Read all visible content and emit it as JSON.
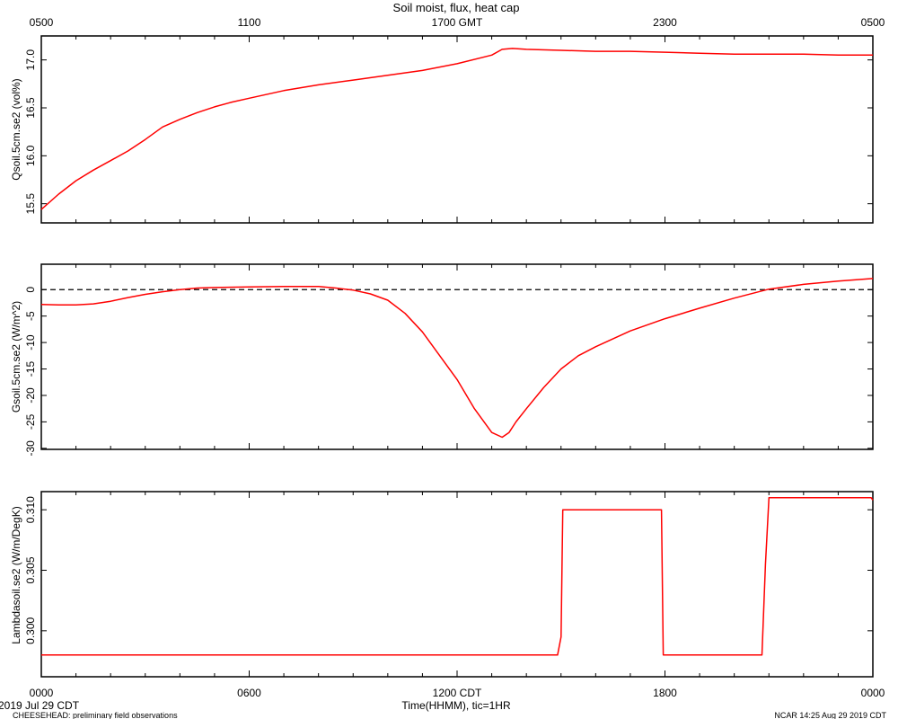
{
  "figure": {
    "title": "Soil moist, flux, heat cap",
    "date_label": "2019 Jul 29 CDT",
    "footer_left": "CHEESEHEAD: preliminary field observations",
    "footer_right": "NCAR 14:25 Aug 29 2019 CDT",
    "top_axis_ticks": [
      "0500",
      "1100",
      "1700 GMT",
      "2300",
      "0500"
    ],
    "bottom_axis_ticks": [
      "0000",
      "0600",
      "1200 CDT",
      "1800",
      "0000"
    ],
    "xlabel": "Time(HHMM), tic=1HR"
  },
  "colors": {
    "series": "#ff0000",
    "axis": "#000000",
    "zero_line": "#000000"
  },
  "chart_data": [
    {
      "type": "line",
      "ylabel": "Qsoil.5cm.se2 (vol%)",
      "xlim": [
        0,
        24
      ],
      "ylim": [
        15.3,
        17.25
      ],
      "yticks": [
        15.5,
        16.0,
        16.5,
        17.0
      ],
      "ytick_labels": [
        "15.5",
        "16.0",
        "16.5",
        "17.0"
      ],
      "series": [
        {
          "x": [
            0,
            0.5,
            1,
            1.5,
            2,
            2.5,
            3,
            3.5,
            4,
            4.5,
            5,
            5.5,
            6,
            7,
            8,
            9,
            10,
            11,
            12,
            13,
            13.3,
            13.6,
            14,
            15,
            16,
            17,
            18,
            19,
            20,
            21,
            22,
            23,
            24
          ],
          "y": [
            15.44,
            15.6,
            15.74,
            15.85,
            15.95,
            16.05,
            16.17,
            16.3,
            16.38,
            16.45,
            16.51,
            16.56,
            16.6,
            16.68,
            16.74,
            16.79,
            16.84,
            16.89,
            16.96,
            17.05,
            17.11,
            17.12,
            17.11,
            17.1,
            17.09,
            17.09,
            17.08,
            17.07,
            17.06,
            17.06,
            17.06,
            17.05,
            17.05
          ]
        }
      ]
    },
    {
      "type": "line",
      "ylabel": "Gsoil.5cm.se2 (W/m^2)",
      "xlim": [
        0,
        24
      ],
      "ylim": [
        -30.2,
        4.8
      ],
      "yticks": [
        -30,
        -25,
        -20,
        -15,
        -10,
        -5,
        0
      ],
      "ytick_labels": [
        "-30",
        "-25",
        "-20",
        "-15",
        "-10",
        "-5",
        "0"
      ],
      "zero_line": true,
      "series": [
        {
          "x": [
            0,
            0.5,
            1,
            1.5,
            2,
            2.5,
            3,
            3.5,
            4,
            4.5,
            5,
            6,
            7,
            8,
            8.5,
            9,
            9.5,
            10,
            10.5,
            11,
            11.5,
            12,
            12.5,
            13,
            13.3,
            13.5,
            13.7,
            14,
            14.5,
            15,
            15.5,
            16,
            17,
            18,
            19,
            20,
            21,
            22,
            23,
            24
          ],
          "y": [
            -2.8,
            -2.9,
            -2.9,
            -2.7,
            -2.2,
            -1.5,
            -0.9,
            -0.4,
            0.0,
            0.3,
            0.4,
            0.5,
            0.6,
            0.6,
            0.3,
            -0.1,
            -0.8,
            -2.0,
            -4.5,
            -8.0,
            -12.5,
            -17.0,
            -22.5,
            -27.0,
            -27.9,
            -27.0,
            -25.0,
            -22.5,
            -18.5,
            -15.0,
            -12.5,
            -10.8,
            -7.8,
            -5.5,
            -3.5,
            -1.6,
            0.1,
            1.0,
            1.6,
            2.1
          ]
        }
      ]
    },
    {
      "type": "line",
      "ylabel": "Lambdasoil.se2 (W/m/DegK)",
      "xlim": [
        0,
        24
      ],
      "ylim": [
        0.2962,
        0.3115
      ],
      "yticks": [
        0.3,
        0.305,
        0.31
      ],
      "ytick_labels": [
        "0.300",
        "0.305",
        "0.310"
      ],
      "series": [
        {
          "x": [
            0,
            14.9,
            15.0,
            15.05,
            17.9,
            17.95,
            20.8,
            20.9,
            21.0,
            23.95,
            24
          ],
          "y": [
            0.298,
            0.298,
            0.2995,
            0.31,
            0.31,
            0.298,
            0.298,
            0.3055,
            0.311,
            0.311,
            0.3108
          ]
        }
      ]
    }
  ]
}
